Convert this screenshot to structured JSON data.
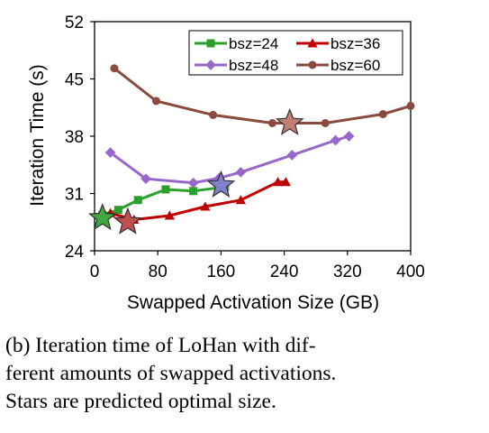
{
  "chart_data": {
    "type": "line",
    "xlabel": "Swapped Activation Size (GB)",
    "ylabel": "Iteration Time (s)",
    "xlim": [
      0,
      400
    ],
    "ylim": [
      24,
      52
    ],
    "xticks": [
      0,
      80,
      160,
      240,
      320,
      400
    ],
    "yticks": [
      24,
      31,
      38,
      45,
      52
    ],
    "grid": false,
    "legend_position": "top-right",
    "series": [
      {
        "name": "bsz=24",
        "color": "#2ca02c",
        "marker": "square",
        "points": [
          [
            10,
            28.4
          ],
          [
            30,
            29.0
          ],
          [
            55,
            30.2
          ],
          [
            90,
            31.5
          ],
          [
            125,
            31.3
          ],
          [
            165,
            31.8
          ]
        ],
        "star": [
          10,
          28.0
        ],
        "star_color": "#3fa83f"
      },
      {
        "name": "bsz=36",
        "color": "#c00000",
        "marker": "triangle",
        "points": [
          [
            20,
            28.6
          ],
          [
            50,
            27.8
          ],
          [
            95,
            28.3
          ],
          [
            140,
            29.4
          ],
          [
            185,
            30.2
          ],
          [
            232,
            32.4
          ],
          [
            242,
            32.4
          ]
        ],
        "star": [
          42,
          27.5
        ],
        "star_color": "#c05050"
      },
      {
        "name": "bsz=48",
        "color": "#9966cc",
        "marker": "diamond",
        "points": [
          [
            20,
            36.0
          ],
          [
            65,
            32.8
          ],
          [
            125,
            32.3
          ],
          [
            158,
            32.9
          ],
          [
            185,
            33.6
          ],
          [
            250,
            35.7
          ],
          [
            305,
            37.5
          ],
          [
            322,
            38.0
          ]
        ],
        "star": [
          160,
          32.0
        ],
        "star_color": "#8080c8"
      },
      {
        "name": "bsz=60",
        "color": "#8b4a3c",
        "marker": "circle",
        "points": [
          [
            25,
            46.3
          ],
          [
            78,
            42.3
          ],
          [
            150,
            40.6
          ],
          [
            225,
            39.6
          ],
          [
            292,
            39.6
          ],
          [
            365,
            40.7
          ],
          [
            400,
            41.7
          ]
        ],
        "star": [
          247,
          39.6
        ],
        "star_color": "#c07f72"
      }
    ]
  },
  "caption": [
    "(b) Iteration time of LoHan with dif-",
    "ferent amounts of swapped activations.",
    "Stars are predicted optimal size."
  ]
}
